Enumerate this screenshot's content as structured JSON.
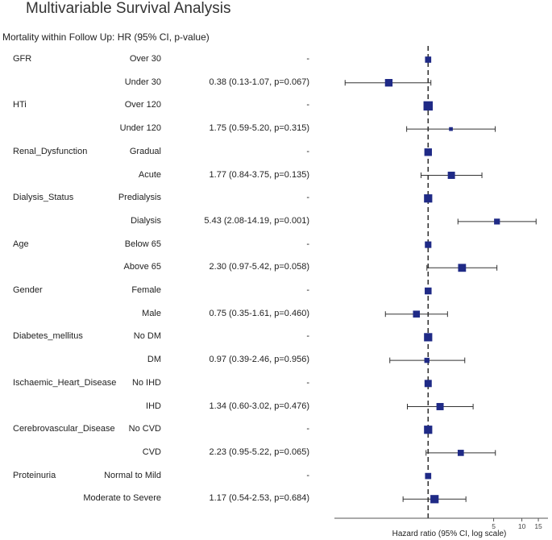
{
  "title": "Multivariable Survival Analysis",
  "chart_data": {
    "type": "forest",
    "title": "Multivariable Survival Analysis",
    "subtitle": "Mortality within Follow Up: HR (95% CI, p-value)",
    "xlabel": "Hazard ratio (95% CI, log scale)",
    "x_scale": "log",
    "reference_line": 1,
    "xlim": [
      0.1,
      19
    ],
    "x_ticks": [
      5,
      10,
      15
    ],
    "rows": [
      {
        "variable": "GFR",
        "level": "Over 30",
        "text": "-",
        "hr": 1,
        "lo": null,
        "hi": null,
        "weight": 0.55
      },
      {
        "variable": "",
        "level": "Under 30",
        "text": "0.38 (0.13-1.07, p=0.067)",
        "hr": 0.38,
        "lo": 0.13,
        "hi": 1.07,
        "weight": 0.75
      },
      {
        "variable": "HTi",
        "level": "Over 120",
        "text": "-",
        "hr": 1,
        "lo": null,
        "hi": null,
        "weight": 1
      },
      {
        "variable": "",
        "level": "Under 120",
        "text": "1.75 (0.59-5.20, p=0.315)",
        "hr": 1.75,
        "lo": 0.59,
        "hi": 5.2,
        "weight": 0.2
      },
      {
        "variable": "Renal_Dysfunction",
        "level": "Gradual",
        "text": "-",
        "hr": 1,
        "lo": null,
        "hi": null,
        "weight": 0.75
      },
      {
        "variable": "",
        "level": "Acute",
        "text": "1.77 (0.84-3.75, p=0.135)",
        "hr": 1.77,
        "lo": 0.84,
        "hi": 3.75,
        "weight": 0.7
      },
      {
        "variable": "Dialysis_Status",
        "level": "Predialysis",
        "text": "-",
        "hr": 1,
        "lo": null,
        "hi": null,
        "weight": 0.85
      },
      {
        "variable": "",
        "level": "Dialysis",
        "text": "5.43 (2.08-14.19, p=0.001)",
        "hr": 5.43,
        "lo": 2.08,
        "hi": 14.19,
        "weight": 0.5
      },
      {
        "variable": "Age",
        "level": "Below 65",
        "text": "-",
        "hr": 1,
        "lo": null,
        "hi": null,
        "weight": 0.6
      },
      {
        "variable": "",
        "level": "Above 65",
        "text": "2.30 (0.97-5.42, p=0.058)",
        "hr": 2.3,
        "lo": 0.97,
        "hi": 5.42,
        "weight": 0.8
      },
      {
        "variable": "Gender",
        "level": "Female",
        "text": "-",
        "hr": 1,
        "lo": null,
        "hi": null,
        "weight": 0.65
      },
      {
        "variable": "",
        "level": "Male",
        "text": "0.75 (0.35-1.61, p=0.460)",
        "hr": 0.75,
        "lo": 0.35,
        "hi": 1.61,
        "weight": 0.65
      },
      {
        "variable": "Diabetes_mellitus",
        "level": "No DM",
        "text": "-",
        "hr": 1,
        "lo": null,
        "hi": null,
        "weight": 0.85
      },
      {
        "variable": "",
        "level": "DM",
        "text": "0.97 (0.39-2.46, p=0.956)",
        "hr": 0.97,
        "lo": 0.39,
        "hi": 2.46,
        "weight": 0.4
      },
      {
        "variable": "Ischaemic_Heart_Disease",
        "level": "No IHD",
        "text": "-",
        "hr": 1,
        "lo": null,
        "hi": null,
        "weight": 0.7
      },
      {
        "variable": "",
        "level": "IHD",
        "text": "1.34 (0.60-3.02, p=0.476)",
        "hr": 1.34,
        "lo": 0.6,
        "hi": 3.02,
        "weight": 0.7
      },
      {
        "variable": "Cerebrovascular_Disease",
        "level": "No CVD",
        "text": "-",
        "hr": 1,
        "lo": null,
        "hi": null,
        "weight": 0.85
      },
      {
        "variable": "",
        "level": "CVD",
        "text": "2.23 (0.95-5.22, p=0.065)",
        "hr": 2.23,
        "lo": 0.95,
        "hi": 5.22,
        "weight": 0.55
      },
      {
        "variable": "Proteinuria",
        "level": "Normal to Mild",
        "text": "-",
        "hr": 1,
        "lo": null,
        "hi": null,
        "weight": 0.55
      },
      {
        "variable": "",
        "level": "Moderate to Severe",
        "text": "1.17 (0.54-2.53, p=0.684)",
        "hr": 1.17,
        "lo": 0.54,
        "hi": 2.53,
        "weight": 0.85
      }
    ]
  },
  "colors": {
    "marker": "#1f2a86",
    "line": "#333333",
    "axis": "#555555"
  }
}
